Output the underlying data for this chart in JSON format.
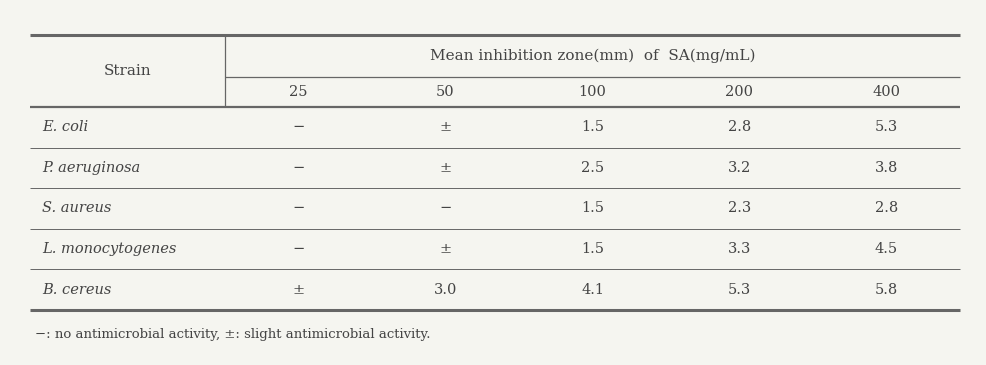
{
  "header_main": "Mean inhibition zone(mm)  of  SA(mg/mL)",
  "header_strain": "Strain",
  "concentrations": [
    "25",
    "50",
    "100",
    "200",
    "400"
  ],
  "strains": [
    "E. coli",
    "P. aeruginosa",
    "S. aureus",
    "L. monocytogenes",
    "B. cereus"
  ],
  "data": [
    [
      "−",
      "±",
      "1.5",
      "2.8",
      "5.3"
    ],
    [
      "−",
      "±",
      "2.5",
      "3.2",
      "3.8"
    ],
    [
      "−",
      "−",
      "1.5",
      "2.3",
      "2.8"
    ],
    [
      "−",
      "±",
      "1.5",
      "3.3",
      "4.5"
    ],
    [
      "±",
      "3.0",
      "4.1",
      "5.3",
      "5.8"
    ]
  ],
  "footnote": "−: no antimicrobial activity, ±: slight antimicrobial activity.",
  "bg_color": "#f5f5f0",
  "text_color": "#444444",
  "line_color": "#666666",
  "font_size": 10.5,
  "header_font_size": 11.0,
  "footnote_font_size": 9.5
}
